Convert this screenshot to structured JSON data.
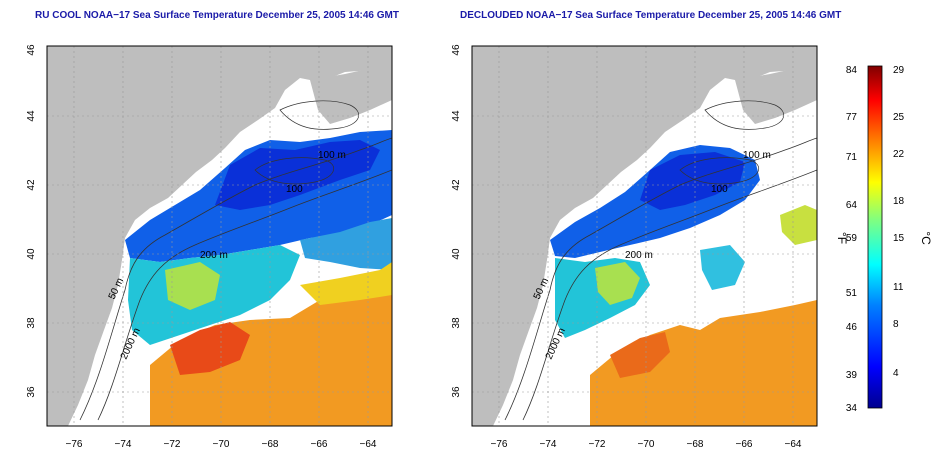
{
  "panels": [
    {
      "title": "RU COOL NOAA−17 Sea Surface Temperature December 25, 2005 14:46 GMT",
      "contour_labels": [
        "100 m",
        "100",
        "200 m",
        "50 m",
        "2000 m"
      ]
    },
    {
      "title": "DECLOUDED NOAA−17 Sea Surface Temperature December 25, 2005 14:46 GMT",
      "contour_labels": [
        "100 m",
        "100",
        "200 m",
        "50 m",
        "2000 m"
      ]
    }
  ],
  "axes": {
    "x_ticks": [
      "−76",
      "−74",
      "−72",
      "−70",
      "−68",
      "−66",
      "−64"
    ],
    "y_ticks": [
      "36",
      "38",
      "40",
      "42",
      "44",
      "46"
    ],
    "x_range": [
      -77,
      -63
    ],
    "y_range": [
      35,
      46
    ],
    "grid": true
  },
  "colorbar": {
    "fahrenheit_ticks": [
      "84",
      "77",
      "71",
      "64",
      "59",
      "51",
      "46",
      "39",
      "34"
    ],
    "celsius_ticks": [
      "29",
      "25",
      "22",
      "18",
      "15",
      "11",
      "8",
      "4"
    ],
    "fahrenheit_label": "°F",
    "celsius_label": "°C",
    "range_celsius": [
      1,
      29
    ],
    "colors": [
      "#00008f",
      "#0000ff",
      "#0080ff",
      "#00ffff",
      "#80ff80",
      "#ffff00",
      "#ff8000",
      "#ff0000",
      "#800000"
    ]
  }
}
